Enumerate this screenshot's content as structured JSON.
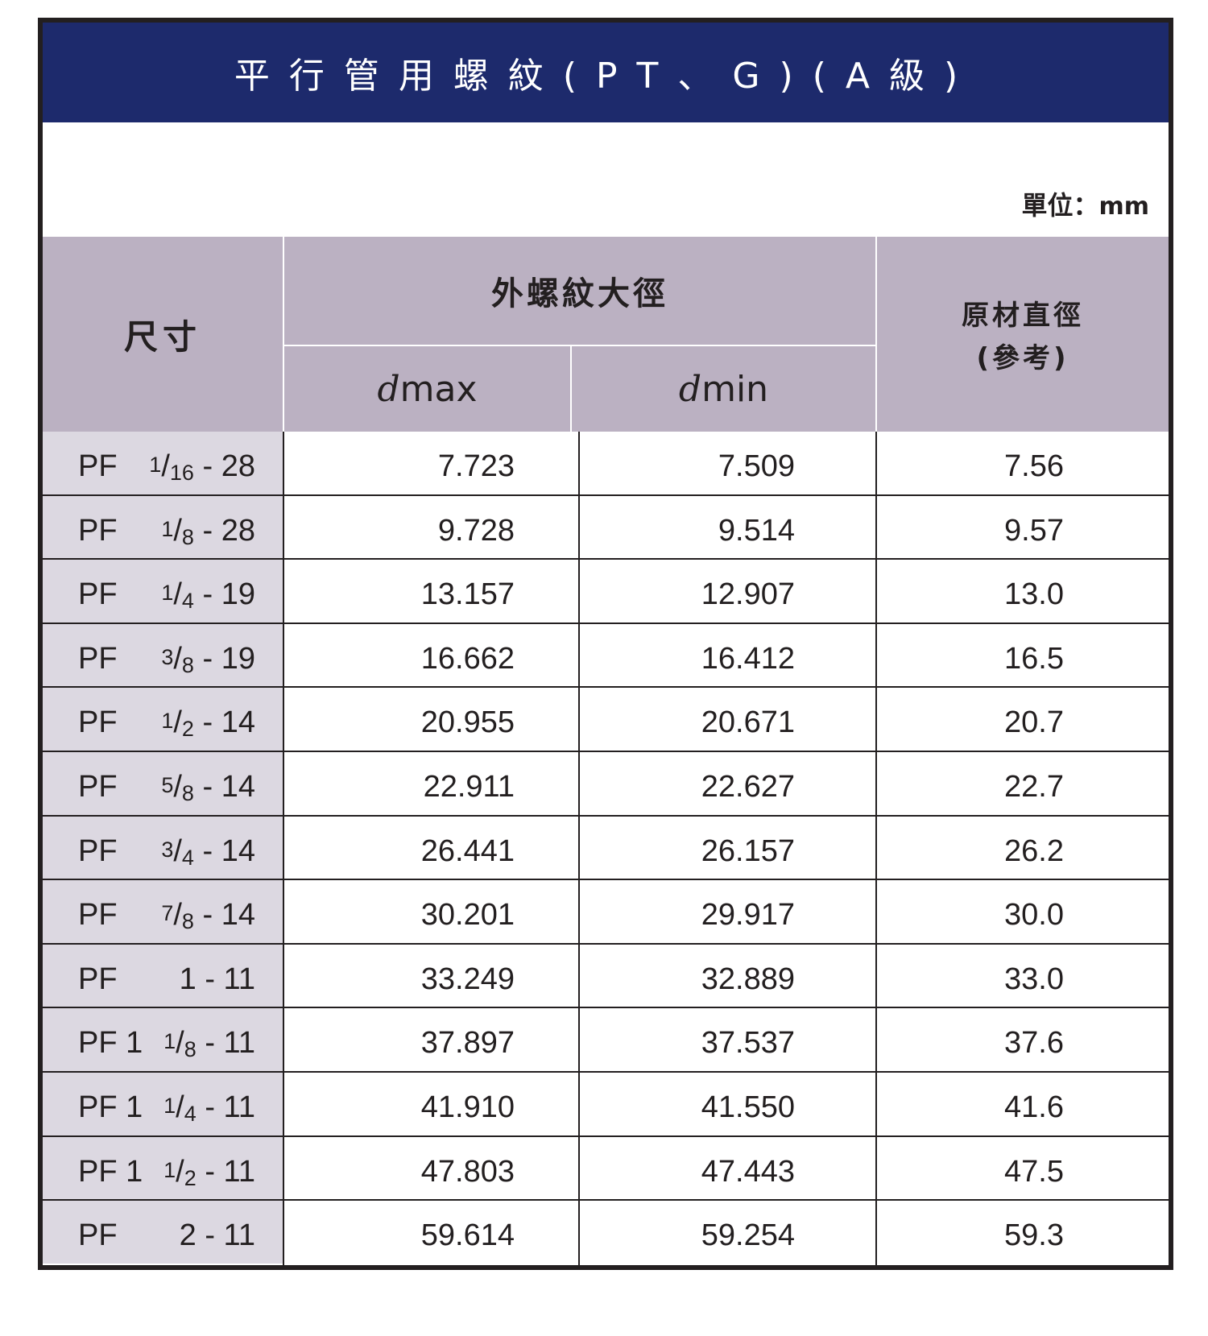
{
  "title": "平行管用螺紋(PT、G)(A級)",
  "unit": {
    "label": "單位：",
    "value": "mm"
  },
  "headers": {
    "size": "尺寸",
    "outer_diameter": "外螺紋大徑",
    "dmax_d": "d",
    "dmax_rest": "max",
    "dmin_d": "d",
    "dmin_rest": "min",
    "stock_line1": "原材直徑",
    "stock_line2": "(參考)"
  },
  "rows": [
    {
      "prefix": "PF",
      "whole": "",
      "num": "1",
      "den": "16",
      "tpi": "28",
      "dmax": "7.723",
      "dmin": "7.509",
      "stock": "7.56"
    },
    {
      "prefix": "PF",
      "whole": "",
      "num": "1",
      "den": "8",
      "tpi": "28",
      "dmax": "9.728",
      "dmin": "9.514",
      "stock": "9.57"
    },
    {
      "prefix": "PF",
      "whole": "",
      "num": "1",
      "den": "4",
      "tpi": "19",
      "dmax": "13.157",
      "dmin": "12.907",
      "stock": "13.0"
    },
    {
      "prefix": "PF",
      "whole": "",
      "num": "3",
      "den": "8",
      "tpi": "19",
      "dmax": "16.662",
      "dmin": "16.412",
      "stock": "16.5"
    },
    {
      "prefix": "PF",
      "whole": "",
      "num": "1",
      "den": "2",
      "tpi": "14",
      "dmax": "20.955",
      "dmin": "20.671",
      "stock": "20.7"
    },
    {
      "prefix": "PF",
      "whole": "",
      "num": "5",
      "den": "8",
      "tpi": "14",
      "dmax": "22.911",
      "dmin": "22.627",
      "stock": "22.7"
    },
    {
      "prefix": "PF",
      "whole": "",
      "num": "3",
      "den": "4",
      "tpi": "14",
      "dmax": "26.441",
      "dmin": "26.157",
      "stock": "26.2"
    },
    {
      "prefix": "PF",
      "whole": "",
      "num": "7",
      "den": "8",
      "tpi": "14",
      "dmax": "30.201",
      "dmin": "29.917",
      "stock": "30.0"
    },
    {
      "prefix": "PF",
      "whole": "1",
      "num": "",
      "den": "",
      "tpi": "11",
      "dmax": "33.249",
      "dmin": "32.889",
      "stock": "33.0"
    },
    {
      "prefix": "PF 1",
      "whole": "",
      "num": "1",
      "den": "8",
      "tpi": "11",
      "dmax": "37.897",
      "dmin": "37.537",
      "stock": "37.6"
    },
    {
      "prefix": "PF 1",
      "whole": "",
      "num": "1",
      "den": "4",
      "tpi": "11",
      "dmax": "41.910",
      "dmin": "41.550",
      "stock": "41.6"
    },
    {
      "prefix": "PF 1",
      "whole": "",
      "num": "1",
      "den": "2",
      "tpi": "11",
      "dmax": "47.803",
      "dmin": "47.443",
      "stock": "47.5"
    },
    {
      "prefix": "PF",
      "whole": "2",
      "num": "",
      "den": "",
      "tpi": "11",
      "dmax": "59.614",
      "dmin": "59.254",
      "stock": "59.3"
    }
  ],
  "colors": {
    "title_bg": "#1d2a6c",
    "header_bg": "#bbb1c2",
    "size_col_bg": "#dcd8e1",
    "border": "#231f20"
  }
}
